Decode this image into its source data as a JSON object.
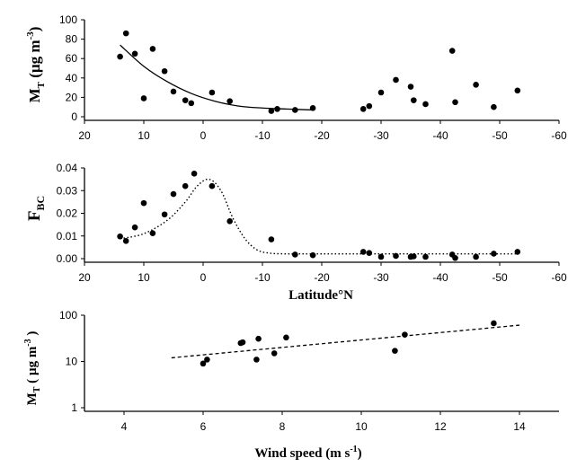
{
  "chart_data": [
    {
      "type": "scatter",
      "ylabel": {
        "main": "M",
        "sub": "T",
        "unit": " (µg m",
        "sup": "-3",
        "close": ")"
      },
      "xlabel": "",
      "xlim": [
        20,
        -60
      ],
      "ylim": [
        0,
        100
      ],
      "xticks": [
        20,
        10,
        0,
        -10,
        -20,
        -30,
        -40,
        -50,
        -60
      ],
      "yticks": [
        0,
        20,
        40,
        60,
        80,
        100
      ],
      "points": [
        [
          14,
          62
        ],
        [
          13,
          86
        ],
        [
          11.5,
          65
        ],
        [
          10,
          19
        ],
        [
          8.5,
          70
        ],
        [
          6.5,
          47
        ],
        [
          5,
          26
        ],
        [
          3,
          17
        ],
        [
          2,
          14
        ],
        [
          -1.5,
          25
        ],
        [
          -4.5,
          16
        ],
        [
          -11.5,
          6
        ],
        [
          -12.5,
          8
        ],
        [
          -15.5,
          7
        ],
        [
          -18.5,
          9
        ],
        [
          -27,
          8
        ],
        [
          -28,
          11
        ],
        [
          -30,
          25
        ],
        [
          -32.5,
          38
        ],
        [
          -35,
          31
        ],
        [
          -35.5,
          17
        ],
        [
          -37.5,
          13
        ],
        [
          -42,
          68
        ],
        [
          -42.5,
          15
        ],
        [
          -46,
          33
        ],
        [
          -49,
          10
        ],
        [
          -53,
          27
        ]
      ],
      "fit": {
        "style": "solid",
        "x": [
          14,
          10,
          6,
          2,
          -2,
          -6,
          -10,
          -14,
          -18.5
        ],
        "y": [
          74,
          52,
          36,
          24,
          16,
          11,
          9,
          8,
          7
        ]
      }
    },
    {
      "type": "scatter",
      "ylabel": {
        "main": "F",
        "sub": "BC"
      },
      "xlabel": "Latitude°N",
      "xlim": [
        20,
        -60
      ],
      "ylim": [
        0,
        0.04
      ],
      "xticks": [
        20,
        10,
        0,
        -10,
        -20,
        -30,
        -40,
        -50,
        -60
      ],
      "yticks": [
        "0.00",
        "0.01",
        "0.02",
        "0.03",
        "0.04"
      ],
      "points": [
        [
          14,
          0.0098
        ],
        [
          13,
          0.0078
        ],
        [
          11.5,
          0.0138
        ],
        [
          10,
          0.0245
        ],
        [
          8.5,
          0.0112
        ],
        [
          6.5,
          0.0195
        ],
        [
          5,
          0.0285
        ],
        [
          3,
          0.032
        ],
        [
          1.5,
          0.0375
        ],
        [
          -1.5,
          0.032
        ],
        [
          -4.5,
          0.0165
        ],
        [
          -11.5,
          0.0085
        ],
        [
          -15.5,
          0.0018
        ],
        [
          -18.5,
          0.0015
        ],
        [
          -27,
          0.003
        ],
        [
          -28,
          0.0025
        ],
        [
          -30,
          0.0008
        ],
        [
          -32.5,
          0.0012
        ],
        [
          -35,
          0.0008
        ],
        [
          -35.5,
          0.001
        ],
        [
          -37.5,
          0.0008
        ],
        [
          -42,
          0.0018
        ],
        [
          -42.5,
          0.0003
        ],
        [
          -46,
          0.0008
        ],
        [
          -49,
          0.0022
        ],
        [
          -53,
          0.003
        ]
      ],
      "fit": {
        "style": "dotted",
        "x": [
          14,
          10,
          6,
          3,
          1,
          -1,
          -3,
          -5,
          -7,
          -9,
          -11,
          -14,
          -20,
          -53
        ],
        "y": [
          0.0088,
          0.011,
          0.017,
          0.025,
          0.032,
          0.035,
          0.03,
          0.018,
          0.009,
          0.004,
          0.0025,
          0.0021,
          0.0021,
          0.0021
        ]
      }
    },
    {
      "type": "scatter",
      "ylabel": {
        "main": "M",
        "sub": "T",
        "unit": " ( µg m",
        "sup": "-3",
        "close": " )"
      },
      "xlabel": {
        "main": "Wind speed (m s",
        "sup": "-1",
        "close": ")"
      },
      "xlim": [
        3,
        15
      ],
      "ylim": [
        1,
        100
      ],
      "yscale": "log",
      "xticks": [
        4,
        6,
        8,
        10,
        12,
        14
      ],
      "yticks": [
        1,
        10,
        100
      ],
      "points": [
        [
          6.0,
          9
        ],
        [
          6.1,
          11
        ],
        [
          6.95,
          25
        ],
        [
          7.0,
          26
        ],
        [
          7.35,
          11
        ],
        [
          7.4,
          31
        ],
        [
          7.8,
          15
        ],
        [
          8.1,
          33
        ],
        [
          10.85,
          17
        ],
        [
          11.1,
          38
        ],
        [
          13.35,
          67
        ]
      ],
      "fit": {
        "style": "dashed",
        "x": [
          5.2,
          14
        ],
        "y": [
          12,
          61
        ]
      }
    }
  ]
}
